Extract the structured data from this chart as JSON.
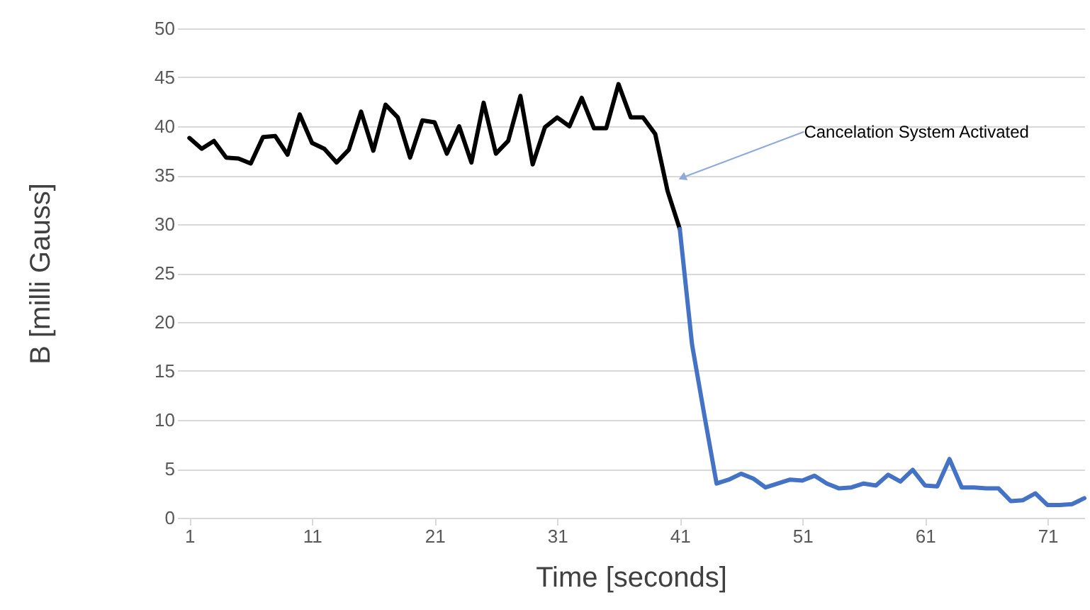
{
  "chart_data": {
    "type": "line",
    "xlabel": "Time [seconds]",
    "ylabel": "B [milli Gauss]",
    "series": [
      {
        "color": "#000000",
        "x": [
          1,
          2,
          3,
          4,
          5,
          6,
          7,
          8,
          9,
          10,
          11,
          12,
          13,
          14,
          15,
          16,
          17,
          18,
          19,
          20,
          21,
          22,
          23,
          24,
          25,
          26,
          27,
          28,
          29,
          30,
          31,
          32,
          33,
          34,
          35,
          36,
          37,
          38,
          39,
          40,
          41
        ],
        "values": [
          38.8,
          37.7,
          38.5,
          36.8,
          36.7,
          36.2,
          38.9,
          39.0,
          37.1,
          41.2,
          38.3,
          37.7,
          36.3,
          37.6,
          41.5,
          37.5,
          42.2,
          40.9,
          36.8,
          40.6,
          40.4,
          37.2,
          40.0,
          36.3,
          42.4,
          37.2,
          38.5,
          43.1,
          36.1,
          39.9,
          40.9,
          40.0,
          42.9,
          39.8,
          39.8,
          44.3,
          40.9,
          40.9,
          39.2,
          33.4,
          29.5
        ]
      },
      {
        "color": "#4472c4",
        "x": [
          41,
          42,
          43,
          44,
          45,
          46,
          47,
          48,
          49,
          50,
          51,
          52,
          53,
          54,
          55,
          56,
          57,
          58,
          59,
          60,
          61,
          62,
          63,
          64,
          65,
          66,
          67,
          68,
          69,
          70,
          71,
          72,
          73,
          74
        ],
        "values": [
          29.5,
          17.7,
          10.5,
          3.5,
          3.9,
          4.5,
          4.0,
          3.1,
          3.5,
          3.9,
          3.8,
          4.3,
          3.5,
          3.0,
          3.1,
          3.5,
          3.3,
          4.4,
          3.7,
          4.9,
          3.3,
          3.2,
          6.0,
          3.1,
          3.1,
          3.0,
          3.0,
          1.7,
          1.8,
          2.5,
          1.3,
          1.3,
          1.4,
          2.0
        ]
      }
    ],
    "xlim": [
      0,
      74
    ],
    "xticks": [
      1,
      11,
      21,
      31,
      41,
      51,
      61,
      71
    ],
    "ylim": [
      0,
      50
    ],
    "yticks": [
      0,
      5,
      10,
      15,
      20,
      25,
      30,
      35,
      40,
      45,
      50
    ],
    "grid": "y",
    "legend": false,
    "marker": "none",
    "line_style": "solid",
    "annotations": [
      {
        "text": "Cancelation System Activated",
        "x": 41.3,
        "y": 34.8
      }
    ]
  }
}
